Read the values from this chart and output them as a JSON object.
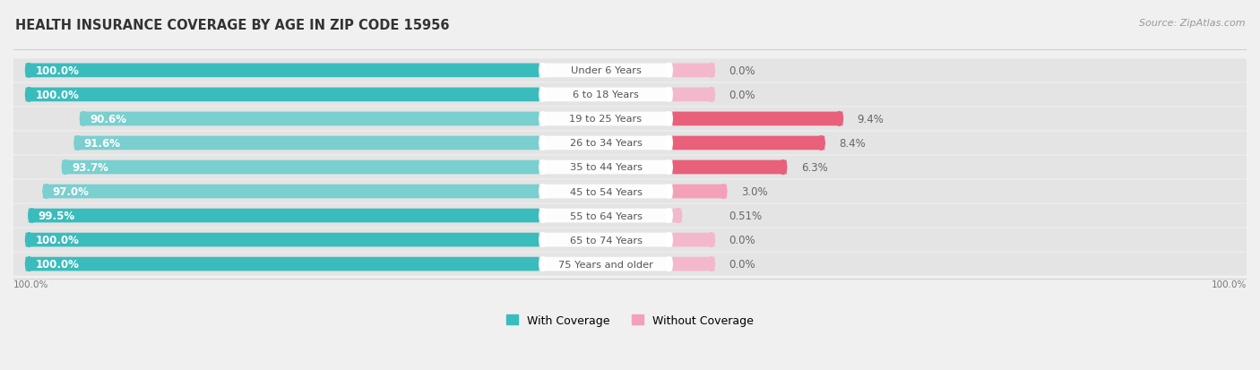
{
  "title": "HEALTH INSURANCE COVERAGE BY AGE IN ZIP CODE 15956",
  "source": "Source: ZipAtlas.com",
  "categories": [
    "Under 6 Years",
    "6 to 18 Years",
    "19 to 25 Years",
    "26 to 34 Years",
    "35 to 44 Years",
    "45 to 54 Years",
    "55 to 64 Years",
    "65 to 74 Years",
    "75 Years and older"
  ],
  "with_coverage": [
    100.0,
    100.0,
    90.6,
    91.6,
    93.7,
    97.0,
    99.5,
    100.0,
    100.0
  ],
  "without_coverage": [
    0.0,
    0.0,
    9.4,
    8.4,
    6.3,
    3.0,
    0.51,
    0.0,
    0.0
  ],
  "color_with_full": "#3BBCBC",
  "color_with_partial": "#7ACFCF",
  "color_without_high": "#E8607A",
  "color_without_low": "#F4A0B8",
  "color_without_zero": "#F4B8CC",
  "bg_figure": "#F0F0F0",
  "bg_row": "#E8E8E8",
  "title_fontsize": 10.5,
  "label_fontsize": 8.5,
  "source_fontsize": 8,
  "legend_fontsize": 9,
  "x_axis_label_left": "100.0%",
  "x_axis_label_right": "100.0%"
}
